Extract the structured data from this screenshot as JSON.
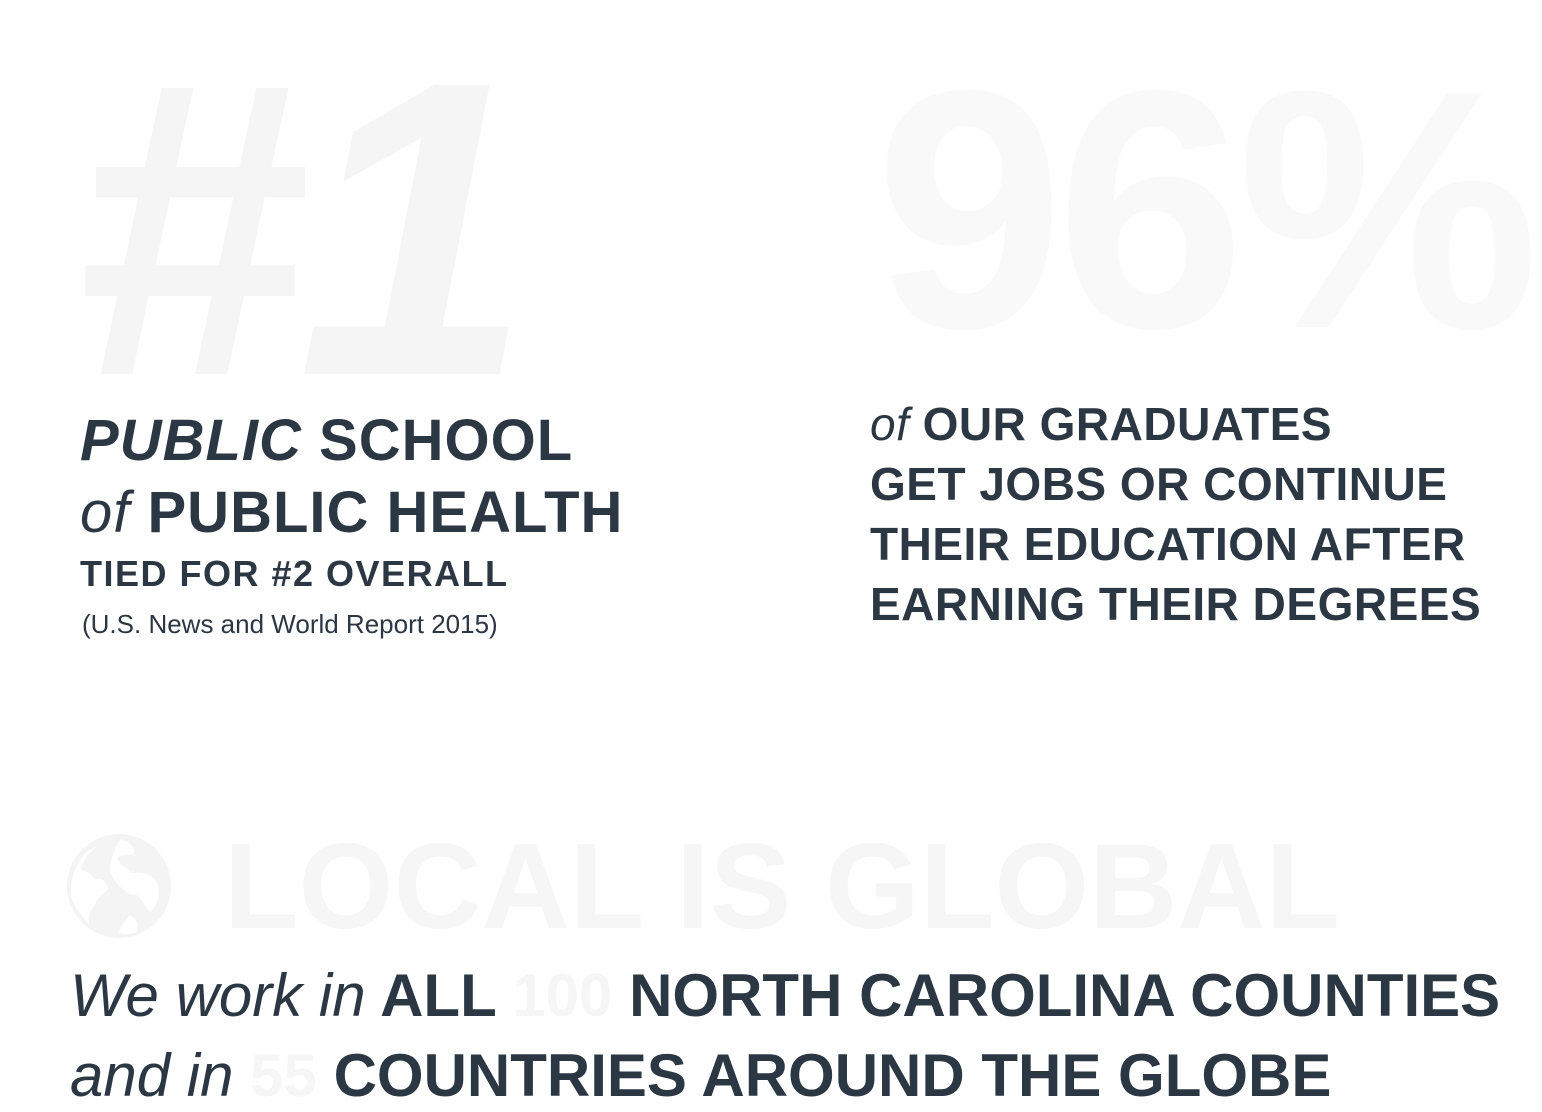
{
  "rank_stat": {
    "big_number": "#1",
    "line1_italic": "PUBLIC",
    "line1_rest": "SCHOOL",
    "line2_italic": "of",
    "line2_rest": "PUBLIC HEALTH",
    "tied": "TIED FOR #2 OVERALL",
    "source": "(U.S. News and World Report 2015)"
  },
  "grad_stat": {
    "big_number": "96%",
    "lead_italic": "of",
    "line1": "OUR GRADUATES",
    "line2": "GET JOBS OR CONTINUE",
    "line3": "THEIR EDUCATION AFTER",
    "line4": "EARNING THEIR DEGREES"
  },
  "global": {
    "icon": "globe-icon",
    "title": "LOCAL IS GLOBAL",
    "line1_italic": "We work in",
    "line1_bold_a": "ALL",
    "line1_number": "100",
    "line1_bold_b": "NORTH CAROLINA COUNTIES",
    "line2_italic": "and in",
    "line2_number": "55",
    "line2_bold": "COUNTRIES AROUND THE GLOBE"
  },
  "colors": {
    "text": "#2b3743",
    "watermark": "#f5f5f5",
    "background": "#ffffff"
  }
}
